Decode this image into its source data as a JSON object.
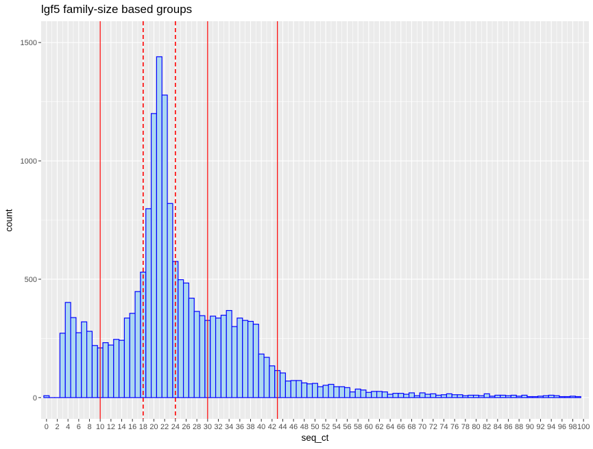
{
  "chart_data": {
    "type": "bar",
    "title": "lgf5 family-size based groups",
    "xlabel": "seq_ct",
    "ylabel": "count",
    "x_tick_labels": [
      "0",
      "2",
      "4",
      "6",
      "8",
      "10",
      "12",
      "14",
      "16",
      "18",
      "20",
      "22",
      "24",
      "26",
      "28",
      "30",
      "32",
      "34",
      "36",
      "38",
      "40",
      "42",
      "44",
      "46",
      "48",
      "50",
      "52",
      "54",
      "56",
      "58",
      "60",
      "62",
      "64",
      "66",
      "68",
      "70",
      "72",
      "74",
      "76",
      "78",
      "80",
      "82",
      "84",
      "86",
      "88",
      "90",
      "92",
      "94",
      "96",
      "98",
      "100"
    ],
    "y_ticks": [
      0,
      500,
      1000,
      1500
    ],
    "ylim": [
      0,
      1500
    ],
    "xlim": [
      -1,
      101
    ],
    "bins": [
      {
        "x": 0,
        "count": 8
      },
      {
        "x": 1,
        "count": 0
      },
      {
        "x": 2,
        "count": 0
      },
      {
        "x": 3,
        "count": 272
      },
      {
        "x": 4,
        "count": 402
      },
      {
        "x": 5,
        "count": 338
      },
      {
        "x": 6,
        "count": 274
      },
      {
        "x": 7,
        "count": 320
      },
      {
        "x": 8,
        "count": 280
      },
      {
        "x": 9,
        "count": 220
      },
      {
        "x": 10,
        "count": 210
      },
      {
        "x": 11,
        "count": 232
      },
      {
        "x": 12,
        "count": 222
      },
      {
        "x": 13,
        "count": 246
      },
      {
        "x": 14,
        "count": 242
      },
      {
        "x": 15,
        "count": 336
      },
      {
        "x": 16,
        "count": 356
      },
      {
        "x": 17,
        "count": 448
      },
      {
        "x": 18,
        "count": 530
      },
      {
        "x": 19,
        "count": 798
      },
      {
        "x": 20,
        "count": 1200
      },
      {
        "x": 21,
        "count": 1440
      },
      {
        "x": 22,
        "count": 1278
      },
      {
        "x": 23,
        "count": 820
      },
      {
        "x": 24,
        "count": 575
      },
      {
        "x": 25,
        "count": 498
      },
      {
        "x": 26,
        "count": 484
      },
      {
        "x": 27,
        "count": 420
      },
      {
        "x": 28,
        "count": 364
      },
      {
        "x": 29,
        "count": 346
      },
      {
        "x": 30,
        "count": 326
      },
      {
        "x": 31,
        "count": 344
      },
      {
        "x": 32,
        "count": 336
      },
      {
        "x": 33,
        "count": 348
      },
      {
        "x": 34,
        "count": 368
      },
      {
        "x": 35,
        "count": 300
      },
      {
        "x": 36,
        "count": 336
      },
      {
        "x": 37,
        "count": 326
      },
      {
        "x": 38,
        "count": 322
      },
      {
        "x": 39,
        "count": 310
      },
      {
        "x": 40,
        "count": 184
      },
      {
        "x": 41,
        "count": 170
      },
      {
        "x": 42,
        "count": 134
      },
      {
        "x": 43,
        "count": 114
      },
      {
        "x": 44,
        "count": 104
      },
      {
        "x": 45,
        "count": 70
      },
      {
        "x": 46,
        "count": 72
      },
      {
        "x": 47,
        "count": 72
      },
      {
        "x": 48,
        "count": 62
      },
      {
        "x": 49,
        "count": 58
      },
      {
        "x": 50,
        "count": 60
      },
      {
        "x": 51,
        "count": 46
      },
      {
        "x": 52,
        "count": 52
      },
      {
        "x": 53,
        "count": 56
      },
      {
        "x": 54,
        "count": 46
      },
      {
        "x": 55,
        "count": 46
      },
      {
        "x": 56,
        "count": 42
      },
      {
        "x": 57,
        "count": 24
      },
      {
        "x": 58,
        "count": 36
      },
      {
        "x": 59,
        "count": 32
      },
      {
        "x": 60,
        "count": 22
      },
      {
        "x": 61,
        "count": 26
      },
      {
        "x": 62,
        "count": 26
      },
      {
        "x": 63,
        "count": 24
      },
      {
        "x": 64,
        "count": 14
      },
      {
        "x": 65,
        "count": 18
      },
      {
        "x": 66,
        "count": 18
      },
      {
        "x": 67,
        "count": 14
      },
      {
        "x": 68,
        "count": 20
      },
      {
        "x": 69,
        "count": 8
      },
      {
        "x": 70,
        "count": 20
      },
      {
        "x": 71,
        "count": 14
      },
      {
        "x": 72,
        "count": 16
      },
      {
        "x": 73,
        "count": 10
      },
      {
        "x": 74,
        "count": 12
      },
      {
        "x": 75,
        "count": 16
      },
      {
        "x": 76,
        "count": 12
      },
      {
        "x": 77,
        "count": 12
      },
      {
        "x": 78,
        "count": 8
      },
      {
        "x": 79,
        "count": 10
      },
      {
        "x": 80,
        "count": 10
      },
      {
        "x": 81,
        "count": 8
      },
      {
        "x": 82,
        "count": 16
      },
      {
        "x": 83,
        "count": 6
      },
      {
        "x": 84,
        "count": 10
      },
      {
        "x": 85,
        "count": 10
      },
      {
        "x": 86,
        "count": 8
      },
      {
        "x": 87,
        "count": 10
      },
      {
        "x": 88,
        "count": 6
      },
      {
        "x": 89,
        "count": 10
      },
      {
        "x": 90,
        "count": 4
      },
      {
        "x": 91,
        "count": 4
      },
      {
        "x": 92,
        "count": 6
      },
      {
        "x": 93,
        "count": 8
      },
      {
        "x": 94,
        "count": 10
      },
      {
        "x": 95,
        "count": 8
      },
      {
        "x": 96,
        "count": 4
      },
      {
        "x": 97,
        "count": 4
      },
      {
        "x": 98,
        "count": 6
      },
      {
        "x": 99,
        "count": 4
      }
    ],
    "vlines": [
      {
        "x": 10,
        "style": "solid"
      },
      {
        "x": 18,
        "style": "dashed"
      },
      {
        "x": 24,
        "style": "dashed"
      },
      {
        "x": 30,
        "style": "solid"
      },
      {
        "x": 43,
        "style": "solid"
      }
    ],
    "colors": {
      "bar_fill": "#acd8f0",
      "bar_outline": "#0000ff",
      "vline": "#ff0000",
      "panel_bg": "#ebebeb",
      "grid": "#ffffff"
    },
    "grid": true,
    "legend": "none"
  }
}
